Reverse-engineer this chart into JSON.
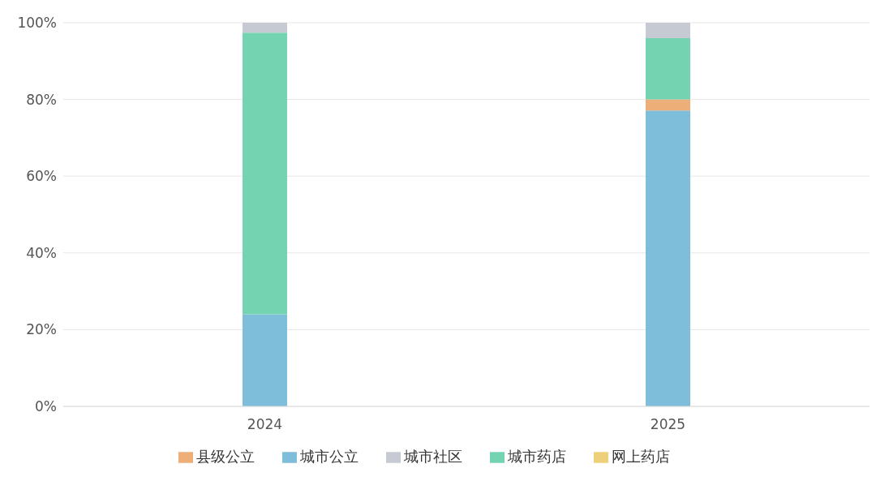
{
  "chart_data": {
    "type": "bar",
    "stacked": true,
    "categories": [
      "2024",
      "2025"
    ],
    "series": [
      {
        "name": "城市公立",
        "color": "#7ebedb",
        "values": [
          24,
          77.1
        ]
      },
      {
        "name": "县级公立",
        "color": "#eeae78",
        "values": [
          0,
          2.9
        ]
      },
      {
        "name": "城市药店",
        "color": "#74d4b2",
        "values": [
          73.4,
          16
        ]
      },
      {
        "name": "网上药店",
        "color": "#eecf7a",
        "values": [
          0,
          0
        ]
      },
      {
        "name": "城市社区",
        "color": "#c6cad2",
        "values": [
          2.6,
          4
        ]
      }
    ],
    "ylim": [
      0,
      100
    ],
    "yticks": [
      {
        "value": 0,
        "label": "0%"
      },
      {
        "value": 20,
        "label": "20%"
      },
      {
        "value": 40,
        "label": "40%"
      },
      {
        "value": 60,
        "label": "60%"
      },
      {
        "value": 80,
        "label": "80%"
      },
      {
        "value": 100,
        "label": "100%"
      }
    ],
    "grid": "y",
    "legend": "bottom"
  }
}
